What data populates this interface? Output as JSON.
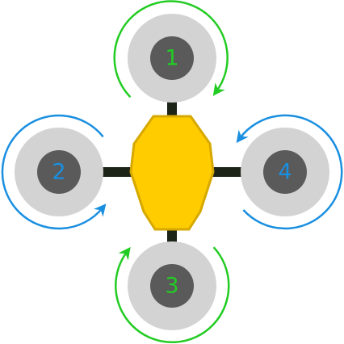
{
  "colors": {
    "cw": "#22cc22",
    "ccw": "#1a8fe0",
    "body_fill": "#ffcc00",
    "body_stroke": "#d6a800",
    "arm": "#1c2418",
    "prop_disc": "#d3d3d3",
    "hub": "#5a5a5a"
  },
  "motors": [
    {
      "id": "m1",
      "label": "1",
      "rotation": "cw"
    },
    {
      "id": "m2",
      "label": "2",
      "rotation": "ccw"
    },
    {
      "id": "m3",
      "label": "3",
      "rotation": "cw"
    },
    {
      "id": "m4",
      "label": "4",
      "rotation": "ccw"
    }
  ]
}
